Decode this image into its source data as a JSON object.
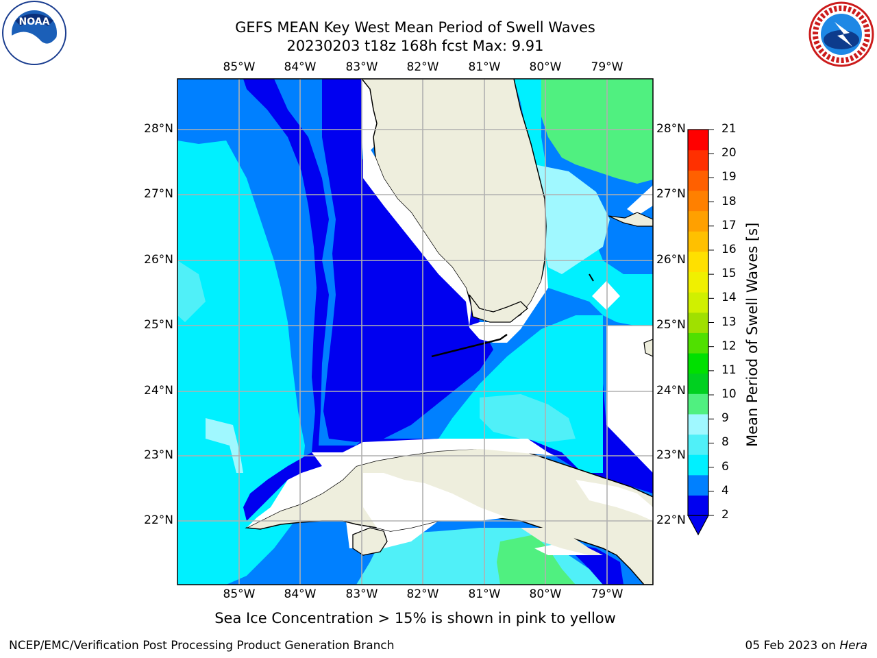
{
  "title_line1": "GEFS MEAN Key West Mean Period of Swell Waves",
  "title_line2": "20230203 t18z 168h fcst   Max: 9.91",
  "lon_labels": [
    "85°W",
    "84°W",
    "83°W",
    "82°W",
    "81°W",
    "80°W",
    "79°W"
  ],
  "lat_labels": [
    "28°N",
    "27°N",
    "26°N",
    "25°N",
    "24°N",
    "23°N",
    "22°N"
  ],
  "map": {
    "lon_range": [
      -86.0,
      -78.25
    ],
    "lat_range": [
      21.0,
      28.8
    ],
    "grid": true,
    "land_color": "#eeeedd",
    "coastline_color": "#000000"
  },
  "colorbar": {
    "label": "Mean Period of Swell Waves [s]",
    "ticks": [
      "21",
      "20",
      "19",
      "18",
      "17",
      "16",
      "15",
      "14",
      "13",
      "12",
      "11",
      "10",
      "9",
      "8",
      "6",
      "4",
      "2"
    ],
    "colors": [
      "#0000f0",
      "#0080ff",
      "#00f0ff",
      "#50f0f8",
      "#a0f8ff",
      "#50f080",
      "#00d020",
      "#00e000",
      "#50e000",
      "#a0e000",
      "#d0f000",
      "#f0f000",
      "#ffe000",
      "#ffc000",
      "#ffa000",
      "#ff8000",
      "#ff6000",
      "#ff3000",
      "#ff0000"
    ],
    "extend": "min"
  },
  "sea_ice_note": "Sea Ice Concentration > 15% is shown in pink to yellow",
  "footer_left": "NCEP/EMC/Verification Post Processing Product Generation Branch",
  "footer_date": "05 Feb 2023",
  "footer_on": " on ",
  "footer_host": "Hera",
  "logos": {
    "left": "noaa-logo",
    "right": "nws-logo"
  },
  "logo_text": {
    "noaa": "NOAA",
    "nws": "NATIONAL WEATHER SERVICE"
  }
}
